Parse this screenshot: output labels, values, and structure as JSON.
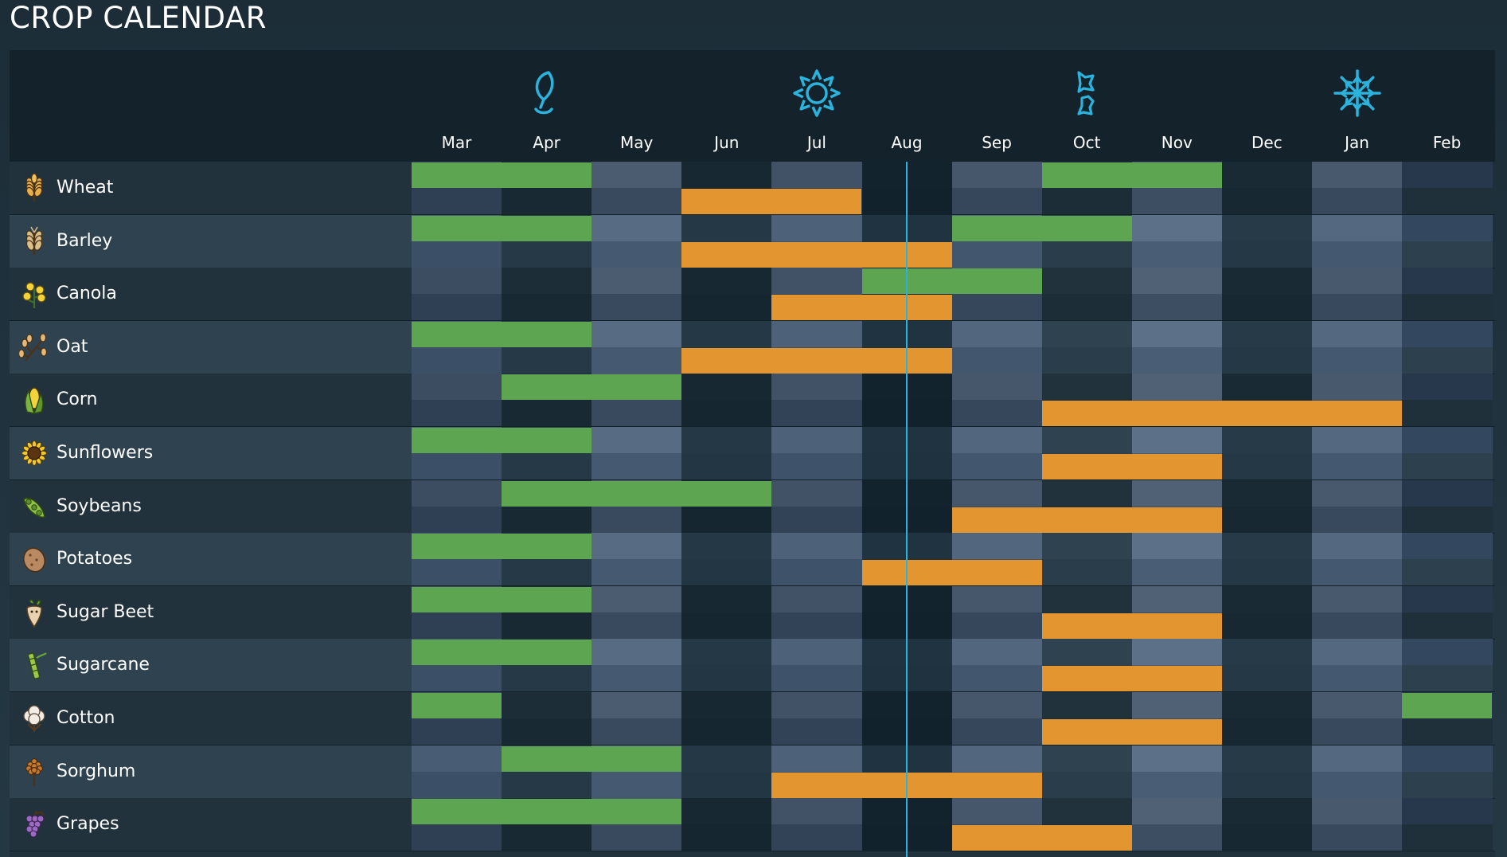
{
  "title": "CROP CALENDAR",
  "colors": {
    "planting": "#5ea552",
    "harvest": "#e39530",
    "accent": "#2bb3dd",
    "header_band": "#14222c"
  },
  "seasons": [
    {
      "name": "spring",
      "icon": "leaf-icon",
      "month_index": 1.5
    },
    {
      "name": "summer",
      "icon": "sun-icon",
      "month_index": 4.5
    },
    {
      "name": "autumn",
      "icon": "falling-leaves-icon",
      "month_index": 7.5
    },
    {
      "name": "winter",
      "icon": "snowflake-icon",
      "month_index": 10.5
    }
  ],
  "months": [
    "Mar",
    "Apr",
    "May",
    "Jun",
    "Jul",
    "Aug",
    "Sep",
    "Oct",
    "Nov",
    "Dec",
    "Jan",
    "Feb"
  ],
  "current_month_index": 5.5,
  "crops": [
    {
      "name": "Wheat",
      "icon": "wheat-icon",
      "planting": [
        [
          0,
          2
        ],
        [
          7,
          9
        ]
      ],
      "harvest": [
        [
          3,
          5
        ]
      ]
    },
    {
      "name": "Barley",
      "icon": "barley-icon",
      "planting": [
        [
          0,
          2
        ],
        [
          6,
          8
        ]
      ],
      "harvest": [
        [
          3,
          6
        ]
      ]
    },
    {
      "name": "Canola",
      "icon": "canola-icon",
      "planting": [
        [
          5,
          7
        ]
      ],
      "harvest": [
        [
          4,
          6
        ]
      ]
    },
    {
      "name": "Oat",
      "icon": "oat-icon",
      "planting": [
        [
          0,
          2
        ]
      ],
      "harvest": [
        [
          3,
          6
        ]
      ]
    },
    {
      "name": "Corn",
      "icon": "corn-icon",
      "planting": [
        [
          1,
          3
        ]
      ],
      "harvest": [
        [
          7,
          11
        ]
      ]
    },
    {
      "name": "Sunflowers",
      "icon": "sunflower-icon",
      "planting": [
        [
          0,
          2
        ]
      ],
      "harvest": [
        [
          7,
          9
        ]
      ]
    },
    {
      "name": "Soybeans",
      "icon": "soybean-icon",
      "planting": [
        [
          1,
          4
        ]
      ],
      "harvest": [
        [
          6,
          9
        ]
      ]
    },
    {
      "name": "Potatoes",
      "icon": "potato-icon",
      "planting": [
        [
          0,
          2
        ]
      ],
      "harvest": [
        [
          5,
          7
        ]
      ]
    },
    {
      "name": "Sugar Beet",
      "icon": "sugar-beet-icon",
      "planting": [
        [
          0,
          2
        ]
      ],
      "harvest": [
        [
          7,
          9
        ]
      ]
    },
    {
      "name": "Sugarcane",
      "icon": "sugarcane-icon",
      "planting": [
        [
          0,
          2
        ]
      ],
      "harvest": [
        [
          7,
          9
        ]
      ]
    },
    {
      "name": "Cotton",
      "icon": "cotton-icon",
      "planting": [
        [
          0,
          1
        ],
        [
          11,
          12
        ]
      ],
      "harvest": [
        [
          7,
          9
        ]
      ]
    },
    {
      "name": "Sorghum",
      "icon": "sorghum-icon",
      "planting": [
        [
          1,
          3
        ]
      ],
      "harvest": [
        [
          4,
          7
        ]
      ]
    },
    {
      "name": "Grapes",
      "icon": "grapes-icon",
      "planting": [
        [
          0,
          3
        ]
      ],
      "harvest": [
        [
          6,
          8
        ]
      ]
    }
  ]
}
